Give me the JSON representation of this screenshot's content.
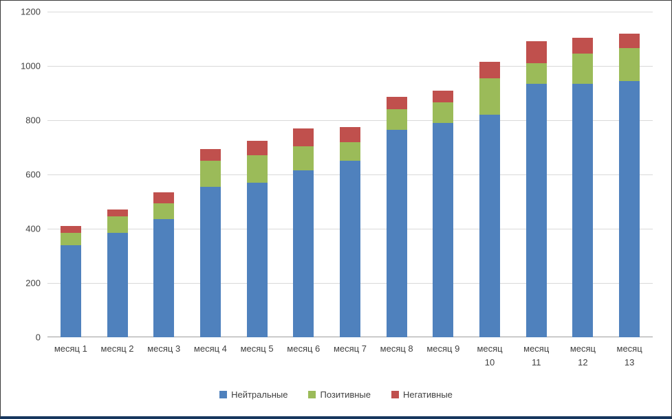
{
  "chart_data": {
    "type": "bar",
    "stacked": true,
    "title": "",
    "xlabel": "",
    "ylabel": "",
    "ylim": [
      0,
      1200
    ],
    "yticks": [
      0,
      200,
      400,
      600,
      800,
      1000,
      1200
    ],
    "grid": true,
    "legend_position": "bottom",
    "categories": [
      "месяц 1",
      "месяц 2",
      "месяц 3",
      "месяц 4",
      "месяц 5",
      "месяц 6",
      "месяц 7",
      "месяц 8",
      "месяц 9",
      "месяц 10",
      "месяц 11",
      "месяц 12",
      "месяц 13"
    ],
    "series": [
      {
        "key": "neutral",
        "name": "Нейтральные",
        "color": "#4f81bd",
        "values": [
          340,
          385,
          435,
          555,
          570,
          615,
          650,
          765,
          790,
          820,
          935,
          935,
          945
        ]
      },
      {
        "key": "positive",
        "name": "Позитивные",
        "color": "#9bbb59",
        "values": [
          45,
          60,
          60,
          95,
          100,
          90,
          70,
          75,
          75,
          135,
          75,
          110,
          120
        ]
      },
      {
        "key": "negative",
        "name": "Негативные",
        "color": "#c0504d",
        "values": [
          25,
          25,
          40,
          45,
          55,
          65,
          55,
          45,
          45,
          60,
          80,
          60,
          55
        ]
      }
    ]
  },
  "colors": {
    "gridline": "#d9d9d9",
    "axis_line": "#9c9c9c",
    "text": "#404040",
    "background": "#ffffff",
    "frame_border": "#3a3a3a",
    "frame_bottom": "#17375e"
  }
}
